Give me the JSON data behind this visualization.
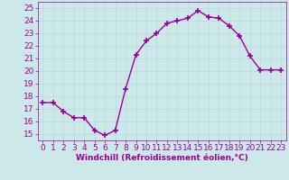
{
  "x": [
    0,
    1,
    2,
    3,
    4,
    5,
    6,
    7,
    8,
    9,
    10,
    11,
    12,
    13,
    14,
    15,
    16,
    17,
    18,
    19,
    20,
    21,
    22,
    23
  ],
  "y": [
    17.5,
    17.5,
    16.8,
    16.3,
    16.3,
    15.3,
    14.9,
    15.3,
    18.6,
    21.3,
    22.4,
    23.0,
    23.8,
    24.0,
    24.2,
    24.8,
    24.3,
    24.2,
    23.6,
    22.8,
    21.2,
    20.1,
    20.1,
    20.1
  ],
  "line_color": "#990099",
  "marker": "+",
  "marker_size": 4,
  "marker_linewidth": 1.2,
  "xlabel": "Windchill (Refroidissement éolien,°C)",
  "xlim": [
    -0.5,
    23.5
  ],
  "ylim": [
    14.5,
    25.5
  ],
  "yticks": [
    15,
    16,
    17,
    18,
    19,
    20,
    21,
    22,
    23,
    24,
    25
  ],
  "xticks": [
    0,
    1,
    2,
    3,
    4,
    5,
    6,
    7,
    8,
    9,
    10,
    11,
    12,
    13,
    14,
    15,
    16,
    17,
    18,
    19,
    20,
    21,
    22,
    23
  ],
  "grid_color": "#b8d8d8",
  "background_color": "#cce8e8",
  "xlabel_color": "#990099",
  "tick_color": "#990099",
  "xlabel_fontsize": 6.5,
  "tick_fontsize": 6.5,
  "linewidth": 1.0
}
